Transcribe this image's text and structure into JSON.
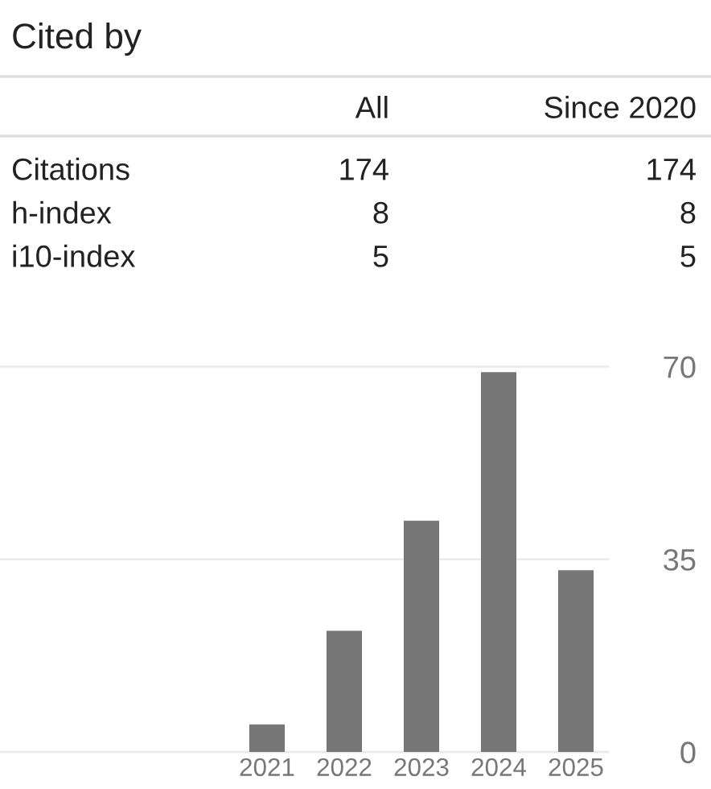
{
  "chart_data": [
    {
      "type": "other",
      "title": "Cited by",
      "categories": [
        "All",
        "Since 2020"
      ],
      "series": [
        {
          "name": "Citations",
          "values": [
            174,
            174
          ]
        },
        {
          "name": "h-index",
          "values": [
            8,
            8
          ]
        },
        {
          "name": "i10-index",
          "values": [
            5,
            5
          ]
        }
      ],
      "data_labels": true
    },
    {
      "type": "bar",
      "categories": [
        "2021",
        "2022",
        "2023",
        "2024",
        "2025"
      ],
      "values": [
        5,
        22,
        42,
        69,
        33
      ],
      "color": "#777777",
      "ylim": [
        0,
        70
      ],
      "yticks": [
        0,
        35,
        70
      ],
      "grid": "y"
    }
  ]
}
